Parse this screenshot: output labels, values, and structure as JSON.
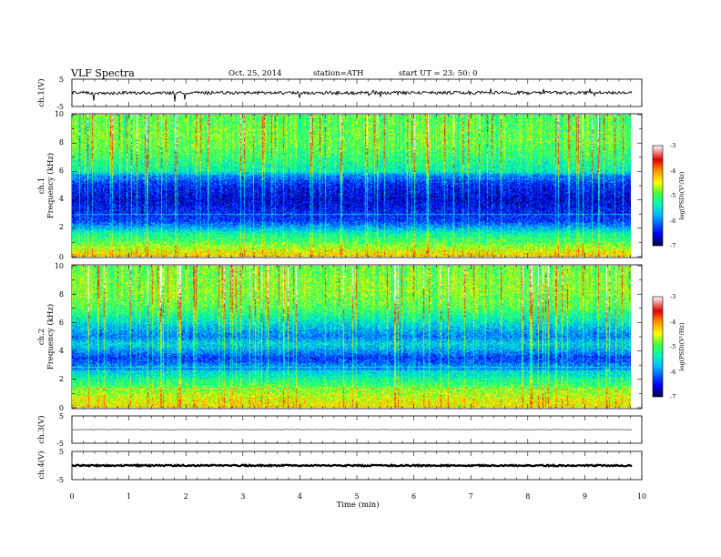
{
  "header": {
    "title": "VLF  Spectra",
    "date": "Oct. 25, 2014",
    "station": "station=ATH",
    "start": "start  UT  =    23: 50: 0"
  },
  "chart_data": {
    "type": "heatmap",
    "x": {
      "label": "Time  (min)",
      "lim": [
        0,
        10
      ],
      "ticks": [
        "0",
        "1",
        "2",
        "3",
        "4",
        "5",
        "6",
        "7",
        "8",
        "9",
        "10"
      ],
      "data_end": 9.82
    },
    "panels": [
      {
        "id": "ch1-waveform",
        "kind": "line",
        "ylabel": "ch.1(V)",
        "ylim": [
          -5,
          5
        ],
        "tick_labels": [
          "5",
          "-5"
        ],
        "center_value": 0,
        "noise_amplitude": 0.6,
        "color": "#000000"
      },
      {
        "id": "ch1-spectrogram",
        "kind": "heatmap",
        "ylabel": "ch.1",
        "ylabel2": "Frequency  (kHz)",
        "ylim": [
          0,
          10
        ],
        "tick_labels": [
          "0",
          "2",
          "4",
          "6",
          "8",
          "10"
        ],
        "colorbar": {
          "label": "log(PSD)(V²/Hz)",
          "range": [
            -7,
            -3
          ],
          "tick_labels": [
            "-3",
            "-4",
            "-5",
            "-6",
            "-7"
          ]
        },
        "typical_logpsd_by_freq_khz": [
          [
            0,
            -4.3
          ],
          [
            0.5,
            -4.6
          ],
          [
            1,
            -5.0
          ],
          [
            1.5,
            -5.2
          ],
          [
            2,
            -5.8
          ],
          [
            2.5,
            -6.3
          ],
          [
            3,
            -6.4
          ],
          [
            4,
            -6.6
          ],
          [
            5,
            -6.4
          ],
          [
            5.7,
            -6.0
          ],
          [
            6,
            -5.4
          ],
          [
            7,
            -5.1
          ],
          [
            8,
            -4.9
          ],
          [
            9,
            -4.9
          ],
          [
            10,
            -5.0
          ]
        ]
      },
      {
        "id": "ch2-spectrogram",
        "kind": "heatmap",
        "ylabel": "ch.2",
        "ylabel2": "Frequency  (kHz)",
        "ylim": [
          0,
          10
        ],
        "tick_labels": [
          "0",
          "2",
          "4",
          "6",
          "8",
          "10"
        ],
        "colorbar": {
          "label": "log(PSD)(V²/Hz)",
          "range": [
            -7,
            -3
          ],
          "tick_labels": [
            "-3",
            "-4",
            "-5",
            "-6",
            "-7"
          ]
        },
        "typical_logpsd_by_freq_khz": [
          [
            0,
            -4.4
          ],
          [
            0.5,
            -4.5
          ],
          [
            1,
            -4.7
          ],
          [
            1.5,
            -5.0
          ],
          [
            2,
            -5.3
          ],
          [
            2.5,
            -5.6
          ],
          [
            3,
            -6.0
          ],
          [
            3.5,
            -6.3
          ],
          [
            4,
            -5.9
          ],
          [
            4.5,
            -5.6
          ],
          [
            5,
            -6.0
          ],
          [
            5.5,
            -5.8
          ],
          [
            6,
            -5.5
          ],
          [
            7,
            -5.0
          ],
          [
            8,
            -4.8
          ],
          [
            9,
            -4.8
          ],
          [
            10,
            -4.9
          ]
        ]
      },
      {
        "id": "ch3-waveform",
        "kind": "line",
        "ylabel": "ch.3(V)",
        "ylim": [
          -5,
          5
        ],
        "tick_labels": [
          "5",
          "-5"
        ],
        "center_value": 0,
        "noise_amplitude": 0.1,
        "color": "#555555"
      },
      {
        "id": "ch4-waveform",
        "kind": "line",
        "ylabel": "ch.4(V)",
        "ylim": [
          -5,
          5
        ],
        "tick_labels": [
          "5",
          "-5"
        ],
        "center_value": 0,
        "noise_amplitude": 0.25,
        "color": "#000000"
      }
    ]
  }
}
